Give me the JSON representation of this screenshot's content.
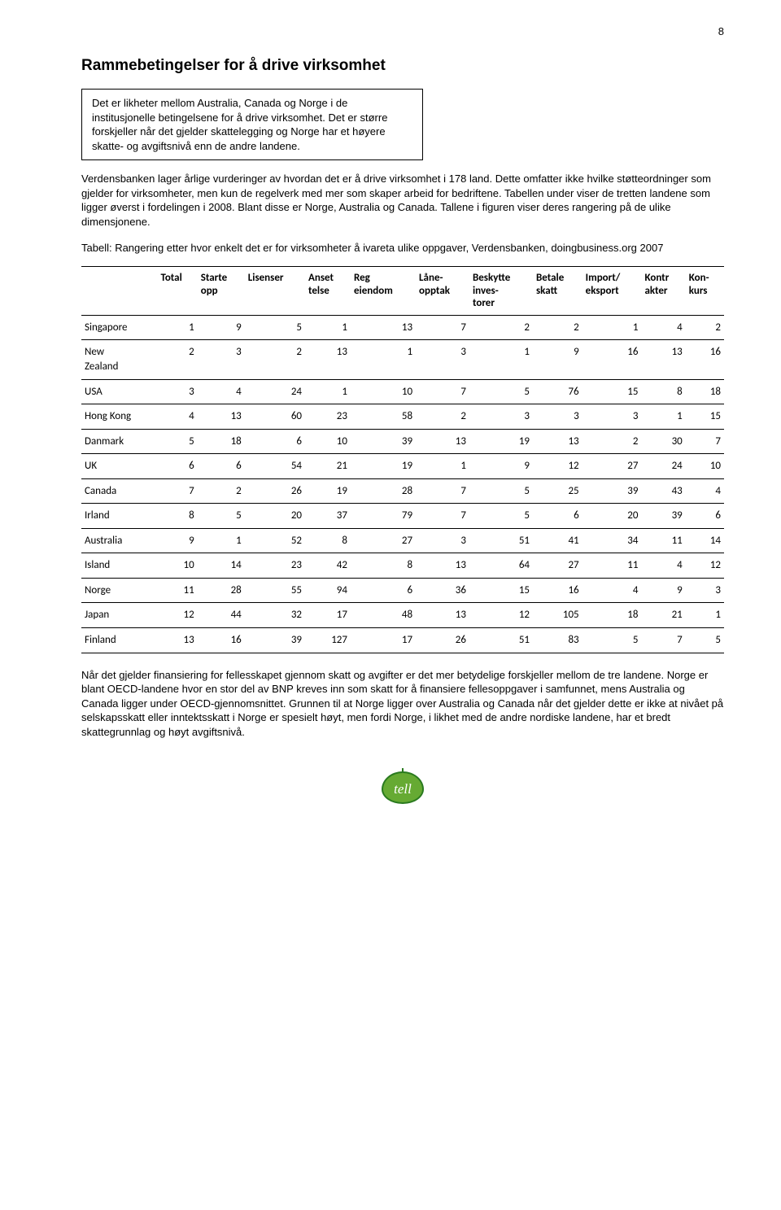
{
  "page_number": "8",
  "title": "Rammebetingelser for å drive virksomhet",
  "callout": "Det er likheter mellom Australia, Canada og Norge i de institusjonelle betingelsene for å drive virksomhet. Det er større forskjeller når det gjelder skattelegging og Norge har et høyere skatte- og avgiftsnivå enn de andre landene.",
  "para1": "Verdensbanken lager årlige vurderinger av hvordan det er å drive virksomhet i 178 land. Dette omfatter ikke hvilke støtteordninger som gjelder for virksomheter, men kun de regelverk med mer som skaper arbeid for bedriftene. Tabellen under viser de tretten landene som ligger øverst i fordelingen i 2008. Blant disse er Norge, Australia og Canada. Tallene i figuren viser deres rangering på de ulike dimensjonene.",
  "para2": "Tabell: Rangering etter hvor enkelt det er for virksomheter å ivareta ulike oppgaver, Verdensbanken, doingbusiness.org 2007",
  "table": {
    "headers": [
      "",
      "Total",
      "Starte\nopp",
      "Lisenser",
      "Anset\ntelse",
      "Reg\neiendom",
      "Låne-\nopptak",
      "Beskytte\ninves-\ntorer",
      "Betale\nskatt",
      "Import/\neksport",
      "Kontr\nakter",
      "Kon-\nkurs"
    ],
    "rows": [
      [
        "Singapore",
        1,
        9,
        5,
        1,
        13,
        7,
        2,
        2,
        1,
        4,
        2
      ],
      [
        "New\nZealand",
        2,
        3,
        2,
        13,
        1,
        3,
        1,
        9,
        16,
        13,
        16
      ],
      [
        "USA",
        3,
        4,
        24,
        1,
        10,
        7,
        5,
        76,
        15,
        8,
        18
      ],
      [
        "Hong Kong",
        4,
        13,
        60,
        23,
        58,
        2,
        3,
        3,
        3,
        1,
        15
      ],
      [
        "Danmark",
        5,
        18,
        6,
        10,
        39,
        13,
        19,
        13,
        2,
        30,
        7
      ],
      [
        "UK",
        6,
        6,
        54,
        21,
        19,
        1,
        9,
        12,
        27,
        24,
        10
      ],
      [
        "Canada",
        7,
        2,
        26,
        19,
        28,
        7,
        5,
        25,
        39,
        43,
        4
      ],
      [
        "Irland",
        8,
        5,
        20,
        37,
        79,
        7,
        5,
        6,
        20,
        39,
        6
      ],
      [
        "Australia",
        9,
        1,
        52,
        8,
        27,
        3,
        51,
        41,
        34,
        11,
        14
      ],
      [
        "Island",
        10,
        14,
        23,
        42,
        8,
        13,
        64,
        27,
        11,
        4,
        12
      ],
      [
        "Norge",
        11,
        28,
        55,
        94,
        6,
        36,
        15,
        16,
        4,
        9,
        3
      ],
      [
        "Japan",
        12,
        44,
        32,
        17,
        48,
        13,
        12,
        105,
        18,
        21,
        1
      ],
      [
        "Finland",
        13,
        16,
        39,
        127,
        17,
        26,
        51,
        83,
        5,
        7,
        5
      ]
    ]
  },
  "para3": "Når det gjelder finansiering for fellesskapet gjennom skatt og avgifter er det mer betydelige forskjeller mellom de tre landene. Norge er blant OECD-landene hvor en stor del av BNP kreves inn som skatt for å finansiere fellesoppgaver i samfunnet, mens Australia og Canada ligger under OECD-gjennomsnittet. Grunnen til at Norge ligger over Australia og Canada når det gjelder dette er ikke at nivået på selskapsskatt eller inntektsskatt i Norge er spesielt høyt, men fordi Norge, i likhet med de andre nordiske landene, har et bredt skattegrunnlag og høyt avgiftsnivå.",
  "logo_text": "tell"
}
